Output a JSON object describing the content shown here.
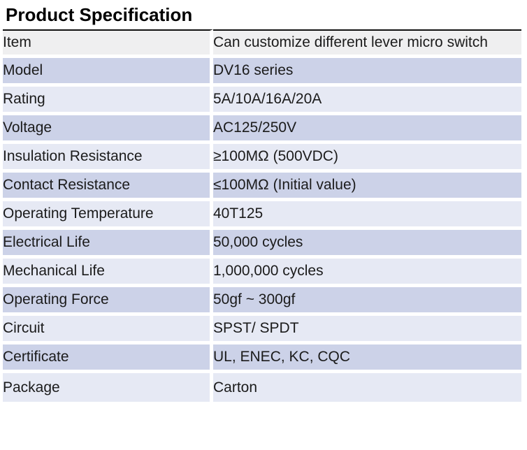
{
  "page": {
    "title": "Product Specification"
  },
  "table": {
    "rows": [
      {
        "label": "Item",
        "value": "Can customize different lever micro switch"
      },
      {
        "label": "Model",
        "value": "DV16 series"
      },
      {
        "label": "Rating",
        "value": "5A/10A/16A/20A"
      },
      {
        "label": "Voltage",
        "value": "AC125/250V"
      },
      {
        "label": "Insulation Resistance",
        "value": "≥100MΩ (500VDC)"
      },
      {
        "label": "Contact Resistance",
        "value": "≤100MΩ (Initial value)"
      },
      {
        "label": "Operating Temperature",
        "value": "40T125"
      },
      {
        "label": "Electrical Life",
        "value": "50,000 cycles"
      },
      {
        "label": "Mechanical Life",
        "value": "1,000,000 cycles"
      },
      {
        "label": "Operating Force",
        "value": "50gf ~ 300gf"
      },
      {
        "label": "Circuit",
        "value": "SPST/ SPDT"
      },
      {
        "label": "Certificate",
        "value": "UL, ENEC, KC, CQC"
      },
      {
        "label": "Package",
        "value": "Carton"
      }
    ]
  },
  "colors": {
    "page_bg": "#ffffff",
    "title_color": "#000000",
    "text_color": "#1b1b1b",
    "top_border": "#111111",
    "divider": "#ffffff",
    "header_row_bg": "#efeff0",
    "band_dark_bg": "#ccd2e8",
    "band_light_bg": "#e6e9f4"
  }
}
